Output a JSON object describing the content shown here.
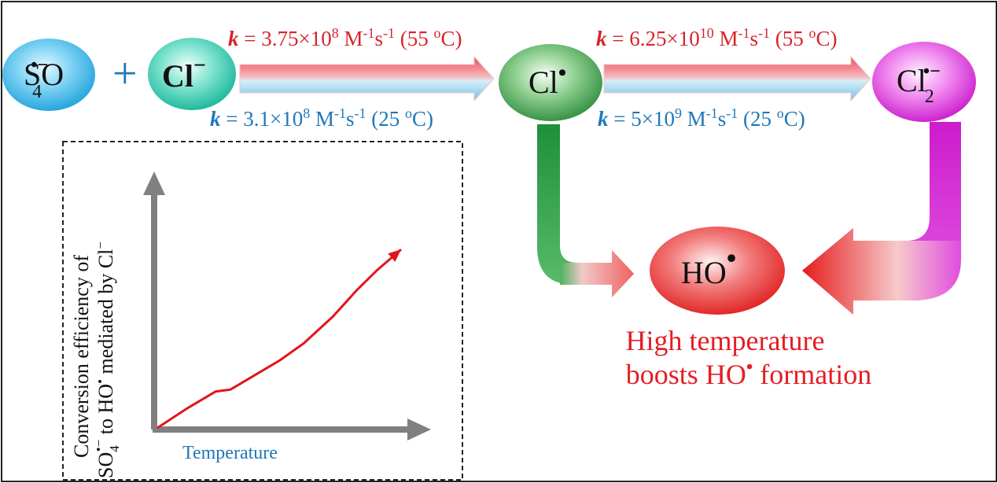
{
  "species": {
    "sulfate_radical": {
      "base": "SO",
      "sub": "4",
      "charge": "•−"
    },
    "plus": "+",
    "chloride": {
      "base": "Cl",
      "charge": "−"
    },
    "chlorine_radical": {
      "base": "Cl",
      "charge": "•"
    },
    "dichloride_radical": {
      "base": "Cl",
      "sub": "2",
      "charge": "•−"
    },
    "hydroxyl_radical": {
      "base": "HO",
      "charge": "•"
    }
  },
  "rates": {
    "k_symbol": "k",
    "reaction1_hot": {
      "eq": " = 3.75×10",
      "exp": "8",
      "unit_a": " M",
      "unit_a_exp": "-1",
      "unit_b": "s",
      "unit_b_exp": "-1",
      "temp_open": " (55 ",
      "temp_deg": "o",
      "temp_close": "C)"
    },
    "reaction1_cool": {
      "eq": " = 3.1×10",
      "exp": "8",
      "unit_a": " M",
      "unit_a_exp": "-1",
      "unit_b": "s",
      "unit_b_exp": "-1",
      "temp_open": " (25 ",
      "temp_deg": "o",
      "temp_close": "C)"
    },
    "reaction2_hot": {
      "eq": " = 6.25×10",
      "exp": "10",
      "unit_a": " M",
      "unit_a_exp": "-1",
      "unit_b": "s",
      "unit_b_exp": "-1",
      "temp_open": " (55 ",
      "temp_deg": "o",
      "temp_close": "C)"
    },
    "reaction2_cool": {
      "eq": " = 5×10",
      "exp": "9",
      "unit_a": " M",
      "unit_a_exp": "-1",
      "unit_b": "s",
      "unit_b_exp": "-1",
      "temp_open": " (25 ",
      "temp_deg": "o",
      "temp_close": "C)"
    }
  },
  "conclusion": {
    "line1": "High temperature",
    "line2_a": "boosts HO",
    "line2_dot": "•",
    "line2_b": " formation"
  },
  "inset_chart": {
    "ylabel_line1": "Conversion efficiency of",
    "ylabel_line2_a": "SO",
    "ylabel_line2_sub": "4",
    "ylabel_line2_charge": "•−",
    "ylabel_line2_b": " to HO",
    "ylabel_line2_dot": "•",
    "ylabel_line2_c": " mediated by Cl",
    "ylabel_line2_minus": "−",
    "xlabel": "Temperature"
  },
  "chart_data": {
    "type": "line",
    "title": "",
    "xlabel": "Temperature",
    "ylabel": "Conversion efficiency of SO4•− to HO• mediated by Cl−",
    "series": [
      {
        "values": [
          [
            0,
            0
          ],
          [
            0.12,
            0.1
          ],
          [
            0.24,
            0.19
          ],
          [
            0.3,
            0.2
          ],
          [
            0.38,
            0.26
          ],
          [
            0.5,
            0.35
          ],
          [
            0.6,
            0.44
          ],
          [
            0.72,
            0.58
          ],
          [
            0.82,
            0.72
          ],
          [
            0.9,
            0.82
          ],
          [
            1.0,
            0.93
          ]
        ]
      }
    ],
    "xlim": [
      0,
      1
    ],
    "ylim": [
      0,
      1
    ],
    "grid": false
  },
  "colors": {
    "hot": "#d8232a",
    "cool": "#1e78b8",
    "sulfate": "#29a6e0",
    "chloride": "#17b39a",
    "chlorine_radical": "#2e8b3a",
    "dichloride": "#d81bd8",
    "hydroxyl": "#e3191f",
    "axis": "#7f7f7f",
    "curve": "#e0161c"
  }
}
